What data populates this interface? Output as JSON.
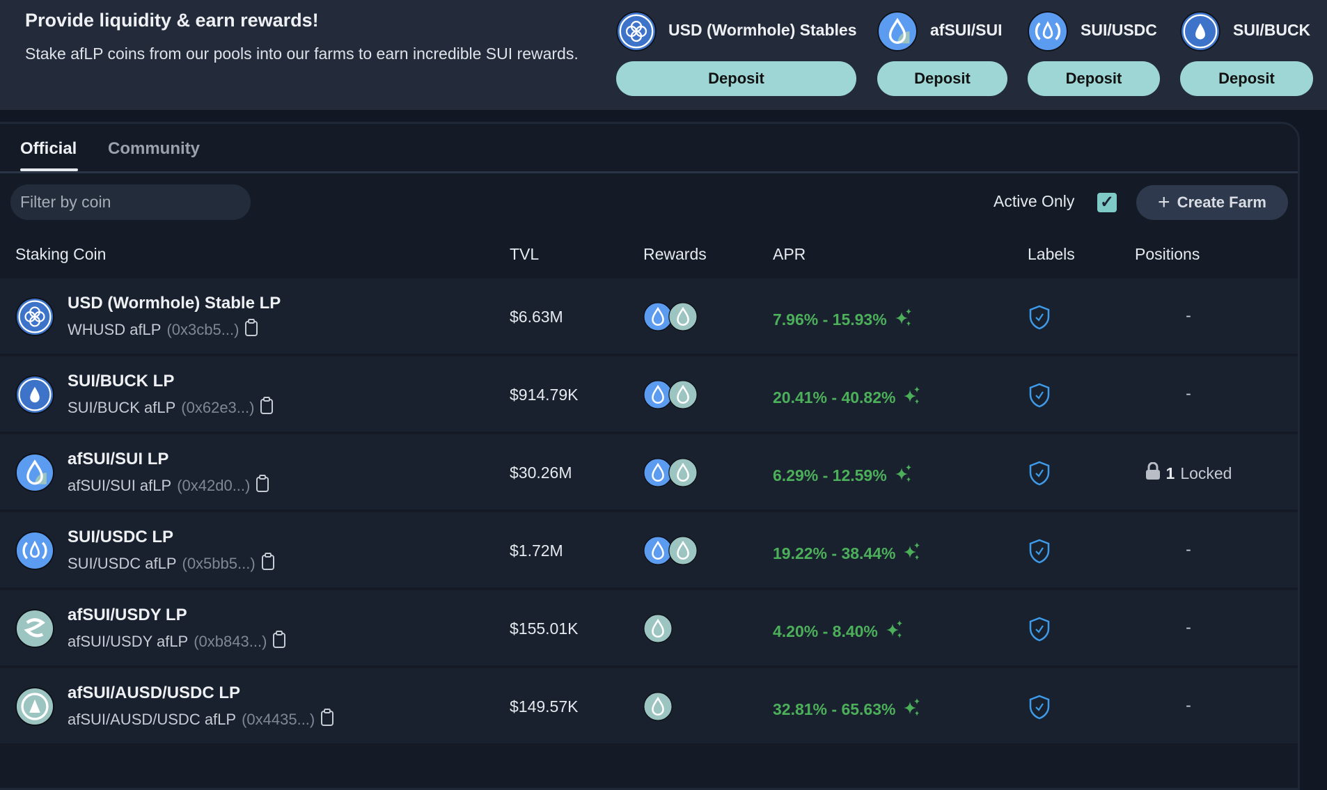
{
  "header": {
    "title": "Provide liquidity & earn rewards!",
    "description": "Stake afLP coins from our pools into our farms to earn incredible SUI rewards.",
    "pools": [
      {
        "name": "USD (Wormhole) Stables",
        "icon": "wormhole-usd-icon",
        "deposit_label": "Deposit"
      },
      {
        "name": "afSUI/SUI",
        "icon": "afsui-icon",
        "deposit_label": "Deposit"
      },
      {
        "name": "SUI/USDC",
        "icon": "usdc-sui-icon",
        "deposit_label": "Deposit"
      },
      {
        "name": "SUI/BUCK",
        "icon": "sui-icon",
        "deposit_label": "Deposit"
      }
    ]
  },
  "tabs": [
    {
      "label": "Official",
      "active": true
    },
    {
      "label": "Community",
      "active": false
    }
  ],
  "filter": {
    "placeholder": "Filter by coin",
    "value": ""
  },
  "active_only": {
    "label": "Active Only",
    "checked": true
  },
  "create_farm_label": "Create Farm",
  "table": {
    "columns": [
      "Staking Coin",
      "TVL",
      "Rewards",
      "APR",
      "Labels",
      "Positions"
    ],
    "rows": [
      {
        "name": "USD (Wormhole) Stable LP",
        "symbol": "WHUSD afLP",
        "address": "(0x3cb5...)",
        "tvl": "$6.63M",
        "rewards": [
          "sui",
          "afsui"
        ],
        "apr": "7.96% - 15.93%",
        "label": "verified-shield",
        "positions": "-",
        "icon": "wormhole-usd-icon"
      },
      {
        "name": "SUI/BUCK LP",
        "symbol": "SUI/BUCK afLP",
        "address": "(0x62e3...)",
        "tvl": "$914.79K",
        "rewards": [
          "sui",
          "afsui"
        ],
        "apr": "20.41% - 40.82%",
        "label": "verified-shield",
        "positions": "-",
        "icon": "sui-icon"
      },
      {
        "name": "afSUI/SUI LP",
        "symbol": "afSUI/SUI afLP",
        "address": "(0x42d0...)",
        "tvl": "$30.26M",
        "rewards": [
          "sui",
          "afsui"
        ],
        "apr": "6.29% - 12.59%",
        "label": "verified-shield",
        "positions": "1",
        "positions_suffix": "Locked",
        "icon": "afsui-icon"
      },
      {
        "name": "SUI/USDC LP",
        "symbol": "SUI/USDC afLP",
        "address": "(0x5bb5...)",
        "tvl": "$1.72M",
        "rewards": [
          "sui",
          "afsui"
        ],
        "apr": "19.22% - 38.44%",
        "label": "verified-shield",
        "positions": "-",
        "icon": "usdc-sui-icon"
      },
      {
        "name": "afSUI/USDY LP",
        "symbol": "afSUI/USDY afLP",
        "address": "(0xb843...)",
        "tvl": "$155.01K",
        "rewards": [
          "afsui"
        ],
        "apr": "4.20% - 8.40%",
        "label": "verified-shield",
        "positions": "-",
        "icon": "usdy-icon"
      },
      {
        "name": "afSUI/AUSD/USDC LP",
        "symbol": "afSUI/AUSD/USDC afLP",
        "address": "(0x4435...)",
        "tvl": "$149.57K",
        "rewards": [
          "afsui"
        ],
        "apr": "32.81% - 65.63%",
        "label": "verified-shield",
        "positions": "-",
        "icon": "ausd-icon"
      }
    ]
  },
  "colors": {
    "accent": "#9dd6d4",
    "apr_green": "#4caf5a",
    "sui_blue": "#5b9bf0",
    "afsui_teal": "#9cc5c1",
    "shield_blue": "#3d9be9"
  }
}
